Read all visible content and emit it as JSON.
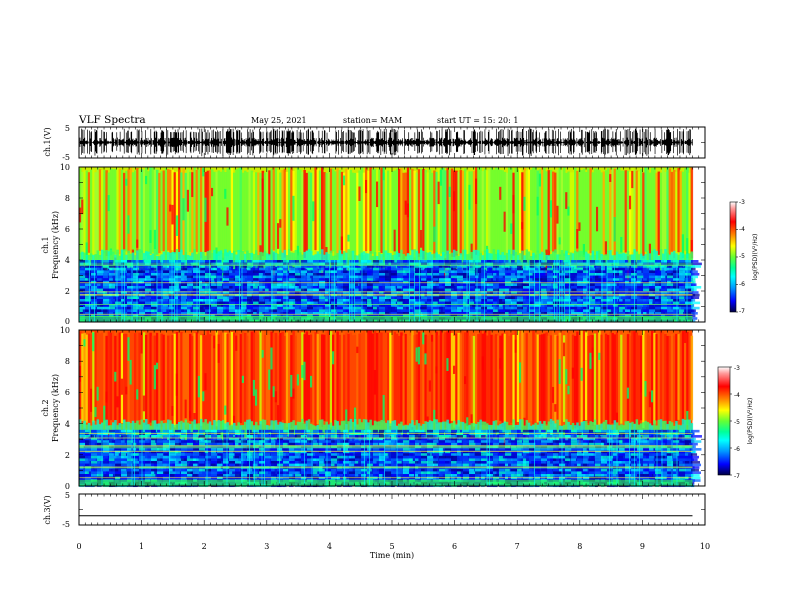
{
  "header": {
    "title": "VLF Spectra",
    "date": "May 25, 2021",
    "station": "station= MAM",
    "start": "start  UT  =    15: 20: 1"
  },
  "colors": {
    "background": "#ffffff",
    "axes": "#000000",
    "spectrogram_scale": [
      "#00008b",
      "#0000ff",
      "#00bfff",
      "#00ffff",
      "#00ff66",
      "#66ff33",
      "#ccff00",
      "#ffff00",
      "#ffa500",
      "#ff3300",
      "#ff0000",
      "#ff9999",
      "#ffffff"
    ]
  },
  "chart_data": [
    {
      "type": "line",
      "name": "ch1-waveform",
      "ylabel": "ch.1(V)",
      "ylim": [
        -5,
        5
      ],
      "yticks": [
        "5",
        "-5"
      ],
      "description_values": {
        "amplitude_range": [
          -4.5,
          4.5
        ],
        "baseline": 0
      }
    },
    {
      "type": "heatmap",
      "name": "ch1-spectrogram",
      "ylabel_line1": "ch.1",
      "ylabel_line2": "Frequency  (kHz)",
      "ylim": [
        0,
        10
      ],
      "yticks": [
        "0",
        "2",
        "4",
        "6",
        "8",
        "10"
      ],
      "value_range_log_psd": [
        -7,
        -3
      ],
      "low_band_upper_kHz": 4.0,
      "colorbar": {
        "label": "log(PSD)(V²/Hz)",
        "ticks": [
          "-3",
          "-4",
          "-5",
          "-6",
          "-7"
        ]
      }
    },
    {
      "type": "heatmap",
      "name": "ch2-spectrogram",
      "ylabel_line1": "ch.2",
      "ylabel_line2": "Frequency  (kHz)",
      "ylim": [
        0,
        10
      ],
      "yticks": [
        "0",
        "2",
        "4",
        "6",
        "8",
        "10"
      ],
      "value_range_log_psd": [
        -7,
        -3
      ],
      "low_band_upper_kHz": 3.6,
      "colorbar": {
        "label": "log(PSD)(V²/Hz)",
        "ticks": [
          "-3",
          "-4",
          "-5",
          "-6",
          "-7"
        ]
      }
    },
    {
      "type": "line",
      "name": "ch3-waveform",
      "ylabel": "ch.3(V)",
      "ylim": [
        -5,
        5
      ],
      "yticks": [
        "5",
        "-5"
      ],
      "x": [
        0,
        9.8
      ],
      "y": [
        -2,
        -2
      ]
    }
  ],
  "xaxis": {
    "label": "Time  (min)",
    "range": [
      0,
      10
    ],
    "ticks": [
      "0",
      "1",
      "2",
      "3",
      "4",
      "5",
      "6",
      "7",
      "8",
      "9",
      "10"
    ],
    "data_end_min": 9.8
  }
}
